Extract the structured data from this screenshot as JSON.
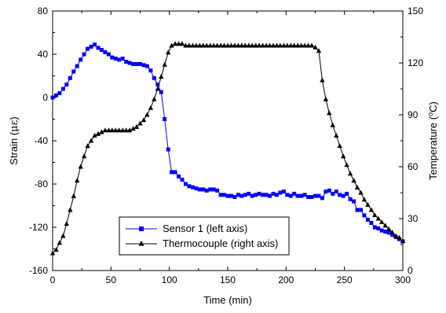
{
  "chart_data": {
    "type": "line",
    "xlabel": "Time (min)",
    "ylabel_left": "Strain (",
    "ylabel_left_unit": "με",
    "ylabel_left_close": ")",
    "ylabel_right": "Temperature (",
    "ylabel_right_sup": "o",
    "ylabel_right_unit": "C)",
    "xlim": [
      0,
      300
    ],
    "ylim_left": [
      -160,
      80
    ],
    "ylim_right": [
      0,
      150
    ],
    "x_ticks": [
      "0",
      "50",
      "100",
      "150",
      "200",
      "250",
      "300"
    ],
    "y_left_ticks": [
      "-160",
      "-120",
      "-80",
      "-40",
      "0",
      "40",
      "80"
    ],
    "y_right_ticks": [
      "0",
      "30",
      "60",
      "90",
      "120",
      "150"
    ],
    "grid": false,
    "legend_position": "bottom-left",
    "series": [
      {
        "name": "Sensor 1 (left axis)",
        "axis": "left",
        "color": "#0000ff",
        "marker": "square",
        "x": [
          0,
          3,
          6,
          9,
          12,
          15,
          18,
          21,
          24,
          27,
          30,
          33,
          36,
          39,
          42,
          45,
          48,
          51,
          54,
          57,
          60,
          63,
          66,
          69,
          72,
          75,
          78,
          81,
          84,
          87,
          90,
          93,
          96,
          99,
          102,
          105,
          108,
          111,
          114,
          117,
          120,
          123,
          126,
          129,
          132,
          135,
          138,
          141,
          144,
          147,
          150,
          153,
          156,
          159,
          162,
          165,
          168,
          171,
          174,
          177,
          180,
          183,
          186,
          189,
          192,
          195,
          198,
          201,
          204,
          207,
          210,
          213,
          216,
          219,
          222,
          225,
          228,
          231,
          234,
          237,
          240,
          243,
          246,
          249,
          252,
          255,
          258,
          261,
          264,
          267,
          270,
          273,
          276,
          279,
          282,
          285,
          288,
          291,
          294,
          297,
          300
        ],
        "values": [
          0,
          2,
          4,
          8,
          12,
          18,
          24,
          29,
          35,
          40,
          45,
          47,
          49,
          46,
          44,
          42,
          40,
          37,
          36,
          35,
          36,
          33,
          32,
          31,
          31,
          31,
          30,
          29,
          25,
          18,
          12,
          5,
          -20,
          -48,
          -69,
          -69,
          -73,
          -76,
          -80,
          -82,
          -83,
          -84,
          -85,
          -85,
          -86,
          -85,
          -85,
          -86,
          -90,
          -90,
          -91,
          -91,
          -92,
          -90,
          -91,
          -90,
          -89,
          -91,
          -90,
          -89,
          -90,
          -90,
          -91,
          -89,
          -90,
          -88,
          -87,
          -90,
          -91,
          -89,
          -91,
          -91,
          -90,
          -92,
          -92,
          -91,
          -91,
          -93,
          -87,
          -86,
          -89,
          -87,
          -90,
          -91,
          -89,
          -94,
          -96,
          -104,
          -104,
          -109,
          -113,
          -116,
          -120,
          -121,
          -123,
          -124,
          -125,
          -127,
          -129,
          -131,
          -133
        ]
      },
      {
        "name": "Thermocouple (right axis)",
        "axis": "right",
        "color": "#000000",
        "marker": "triangle",
        "x": [
          0,
          3,
          6,
          9,
          12,
          15,
          18,
          21,
          24,
          27,
          30,
          33,
          36,
          39,
          42,
          45,
          48,
          51,
          54,
          57,
          60,
          63,
          66,
          69,
          72,
          75,
          78,
          81,
          84,
          87,
          90,
          93,
          96,
          99,
          102,
          105,
          108,
          111,
          114,
          117,
          120,
          123,
          126,
          129,
          132,
          135,
          138,
          141,
          144,
          147,
          150,
          153,
          156,
          159,
          162,
          165,
          168,
          171,
          174,
          177,
          180,
          183,
          186,
          189,
          192,
          195,
          198,
          201,
          204,
          207,
          210,
          213,
          216,
          219,
          222,
          225,
          228,
          231,
          234,
          237,
          240,
          243,
          246,
          249,
          252,
          255,
          258,
          261,
          264,
          267,
          270,
          273,
          276,
          279,
          282,
          285,
          288,
          291,
          294,
          297,
          300
        ],
        "values": [
          10,
          12,
          16,
          20,
          27,
          35,
          43,
          52,
          60,
          66,
          72,
          75,
          78,
          79,
          80,
          81,
          81,
          81,
          81,
          81,
          81,
          81,
          81,
          82,
          83,
          85,
          87,
          90,
          94,
          99,
          105,
          112,
          119,
          126,
          130,
          131,
          131,
          131,
          130,
          130,
          130,
          130,
          130,
          130,
          130,
          130,
          130,
          130,
          130,
          130,
          130,
          130,
          130,
          130,
          130,
          130,
          130,
          130,
          130,
          130,
          130,
          130,
          130,
          130,
          130,
          130,
          130,
          130,
          130,
          130,
          130,
          130,
          130,
          130,
          130,
          129,
          127,
          110,
          99,
          91,
          84,
          78,
          72,
          66,
          61,
          56,
          52,
          48,
          45,
          41,
          38,
          35,
          32,
          30,
          28,
          26,
          24,
          22,
          20,
          19,
          17
        ]
      }
    ]
  }
}
